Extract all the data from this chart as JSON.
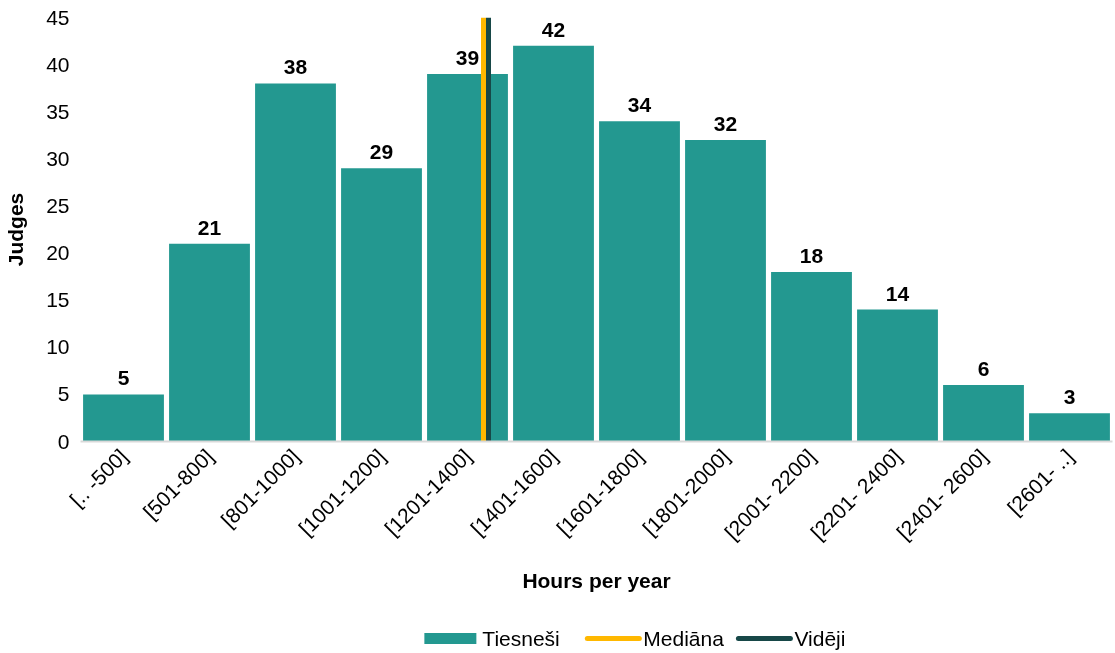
{
  "chart_data": {
    "type": "bar",
    "xlabel": "Hours per year",
    "ylabel": "Judges",
    "categories": [
      "[.. -500]",
      "[501-800]",
      "[801-1000]",
      "[1001-1200]",
      "[1201-1400]",
      "[1401-1600]",
      "[1601-1800]",
      "[1801-2000]",
      "[2001- 2200]",
      "[2201- 2400]",
      "[2401- 2600]",
      "[2601- ..]"
    ],
    "ylim": [
      0,
      45
    ],
    "yticks": [
      0,
      5,
      10,
      15,
      20,
      25,
      30,
      35,
      40,
      45
    ],
    "legend": "bottom",
    "series": [
      {
        "name": "Tiesneši",
        "color": "#239890",
        "values": [
          5,
          21,
          38,
          29,
          39,
          42,
          34,
          32,
          18,
          14,
          6,
          3
        ],
        "value_labels": [
          "5",
          "21",
          "38",
          "29",
          "39",
          "42",
          "34",
          "32",
          "18",
          "14",
          "6",
          "3"
        ]
      }
    ],
    "ref_lines": [
      {
        "axis": "x",
        "value": "[1201-1400]",
        "label": "Mediāna",
        "color": "#ffb800"
      },
      {
        "axis": "x",
        "value": "[1201-1400]",
        "label": "Vidēji",
        "color": "#174848"
      }
    ]
  }
}
